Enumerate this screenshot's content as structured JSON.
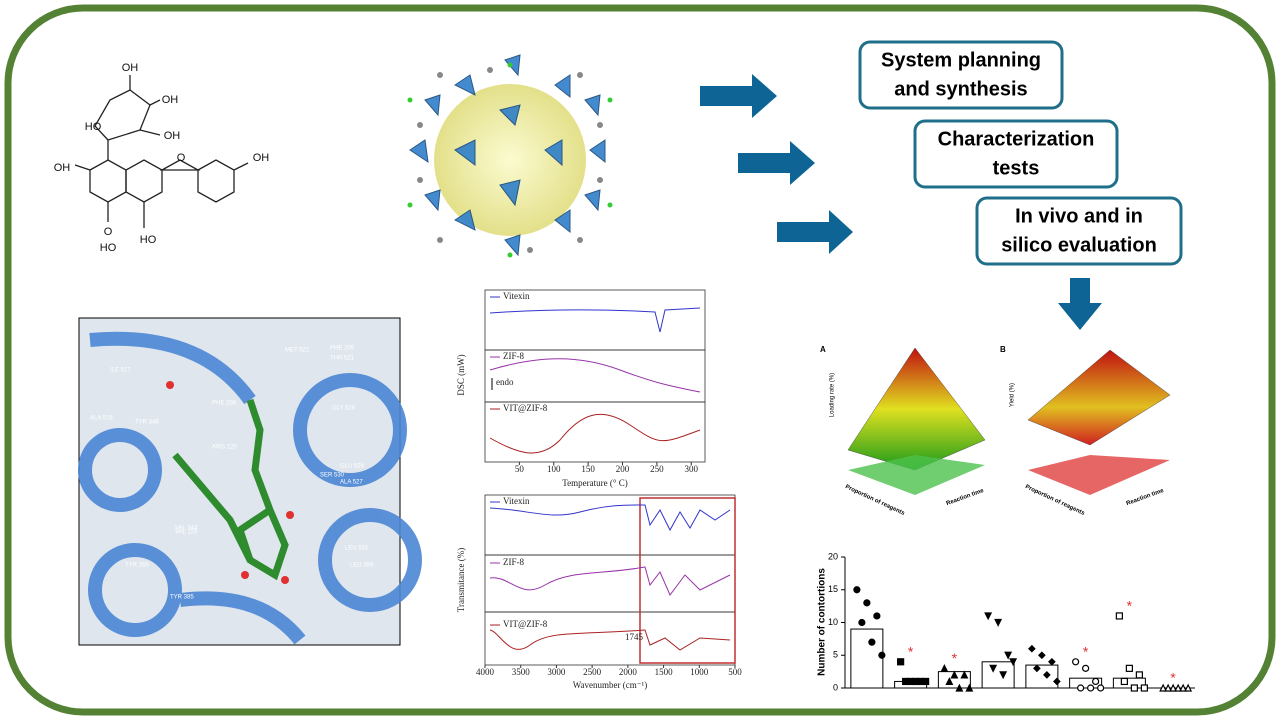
{
  "plus": "+",
  "boxes": [
    {
      "lines": [
        "System planning",
        "and synthesis"
      ]
    },
    {
      "lines": [
        "Characterization",
        "tests"
      ]
    },
    {
      "lines": [
        "In vivo and in",
        "silico evaluation"
      ]
    }
  ],
  "molecule": {
    "labels": [
      "OH",
      "OH",
      "HO",
      "OH",
      "OH",
      "HO",
      "O",
      "OH",
      "HO",
      "O"
    ]
  },
  "docking": {
    "labels": [
      "PHE 209",
      "MET 522",
      "THR 521",
      "ILE 517",
      "ALA 516",
      "PHE 208",
      "GLY 526",
      "TYR 348",
      "ARG 120",
      "GLU 524",
      "ALA 527",
      "SER 530",
      "VAL 344",
      "LEU 531",
      "TYR 355",
      "VAL 116",
      "LEU 359",
      "TYR 385"
    ]
  },
  "dsc": {
    "series": [
      "Vitexin",
      "ZIF-8",
      "VIT@ZIF-8"
    ],
    "ylabel": "DSC (mW)",
    "xlabel": "Temperature (° C)",
    "note": "endo",
    "xlim": [
      0,
      320
    ],
    "xticks": [
      50,
      100,
      150,
      200,
      250,
      300
    ]
  },
  "ftir": {
    "series": [
      "Vitexin",
      "ZIF-8",
      "VIT@ZIF-8"
    ],
    "ylabel": "Transmitance (%)",
    "xlabel": "Wavenumber (cm⁻¹)",
    "note": "1745",
    "xlim": [
      4000,
      500
    ],
    "xticks": [
      4000,
      3500,
      3000,
      2500,
      2000,
      1500,
      1000,
      500
    ]
  },
  "surfaces": [
    {
      "panel": "A",
      "zlabel": "Loading rate (%)",
      "xlabel": "Proportion of reagents",
      "ylabel": "Reaction time"
    },
    {
      "panel": "B",
      "zlabel": "Yield (%)",
      "xlabel": "Proportion of reagents",
      "ylabel": "Reaction time"
    }
  ],
  "chart_data": {
    "type": "bar",
    "ylabel": "Number of contortions",
    "ylim": [
      0,
      20
    ],
    "yticks": [
      0,
      5,
      10,
      15,
      20
    ],
    "values": [
      9,
      1,
      2.5,
      4,
      3.5,
      1.5,
      1.5,
      0
    ],
    "points": [
      [
        15,
        13,
        11,
        10,
        7,
        5
      ],
      [
        4,
        1,
        1,
        1,
        1,
        1
      ],
      [
        3,
        2,
        2,
        1,
        0,
        0
      ],
      [
        11,
        10,
        5,
        3,
        2,
        4
      ],
      [
        6,
        5,
        4,
        3,
        2,
        1
      ],
      [
        4,
        3,
        1,
        0,
        0,
        0
      ],
      [
        11,
        3,
        2,
        1,
        0,
        0
      ],
      [
        0,
        0,
        0,
        0,
        0,
        0
      ]
    ],
    "significance": [
      null,
      "*",
      "*",
      null,
      null,
      "*",
      "*",
      "*"
    ],
    "color": "#ffffff"
  }
}
